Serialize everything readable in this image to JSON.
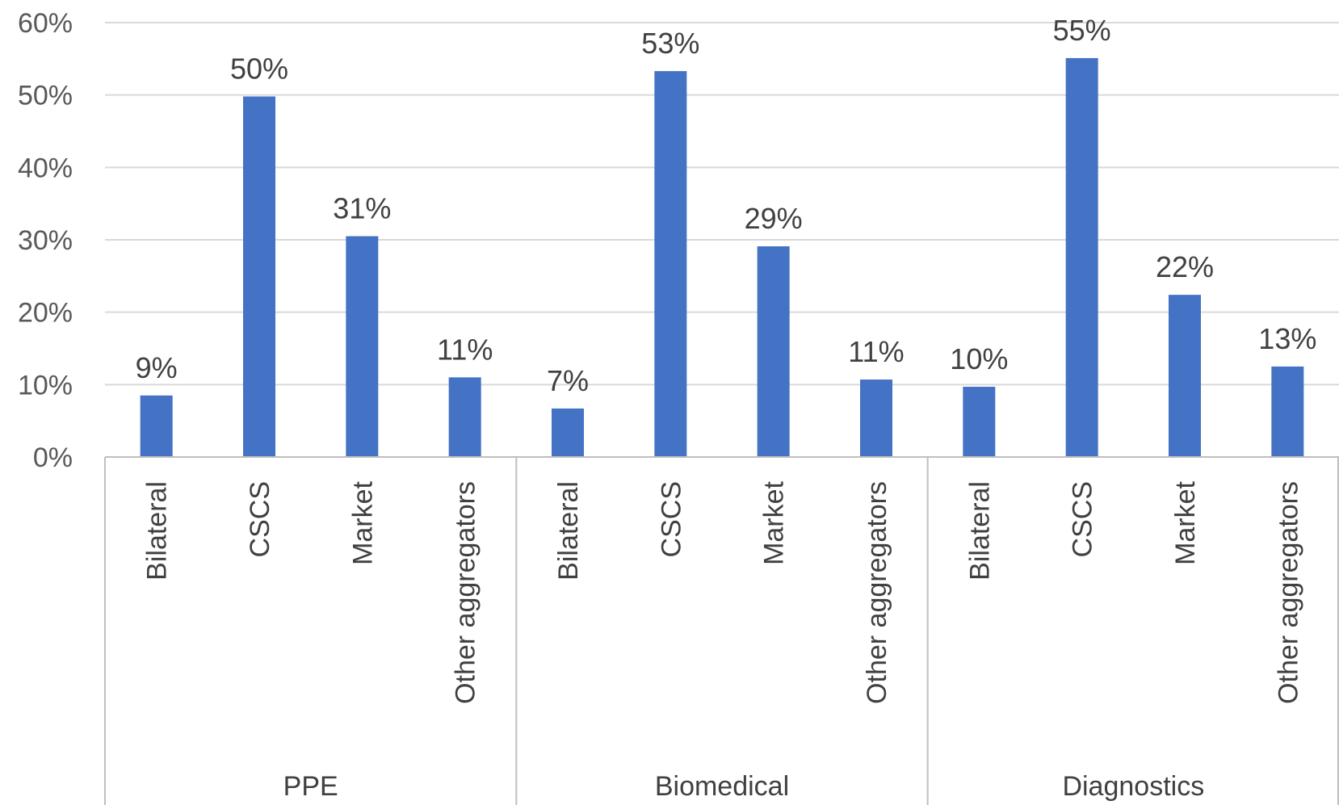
{
  "chart_data": {
    "type": "bar",
    "groups": [
      {
        "label": "PPE",
        "categories": [
          "Bilateral",
          "CSCS",
          "Market",
          "Other aggregators"
        ],
        "values": [
          8.5,
          49.8,
          30.5,
          11.0
        ],
        "data_labels": [
          "9%",
          "50%",
          "31%",
          "11%"
        ]
      },
      {
        "label": "Biomedical",
        "categories": [
          "Bilateral",
          "CSCS",
          "Market",
          "Other aggregators"
        ],
        "values": [
          6.7,
          53.3,
          29.1,
          10.7
        ],
        "data_labels": [
          "7%",
          "53%",
          "29%",
          "11%"
        ]
      },
      {
        "label": "Diagnostics",
        "categories": [
          "Bilateral",
          "CSCS",
          "Market",
          "Other aggregators"
        ],
        "values": [
          9.7,
          55.1,
          22.4,
          12.5
        ],
        "data_labels": [
          "10%",
          "55%",
          "22%",
          "13%"
        ]
      }
    ],
    "y_ticks": [
      "0%",
      "10%",
      "20%",
      "30%",
      "40%",
      "50%",
      "60%"
    ],
    "ylim": [
      0,
      60
    ],
    "bar_color": "#4472c4",
    "grid": true,
    "legend": "none"
  }
}
